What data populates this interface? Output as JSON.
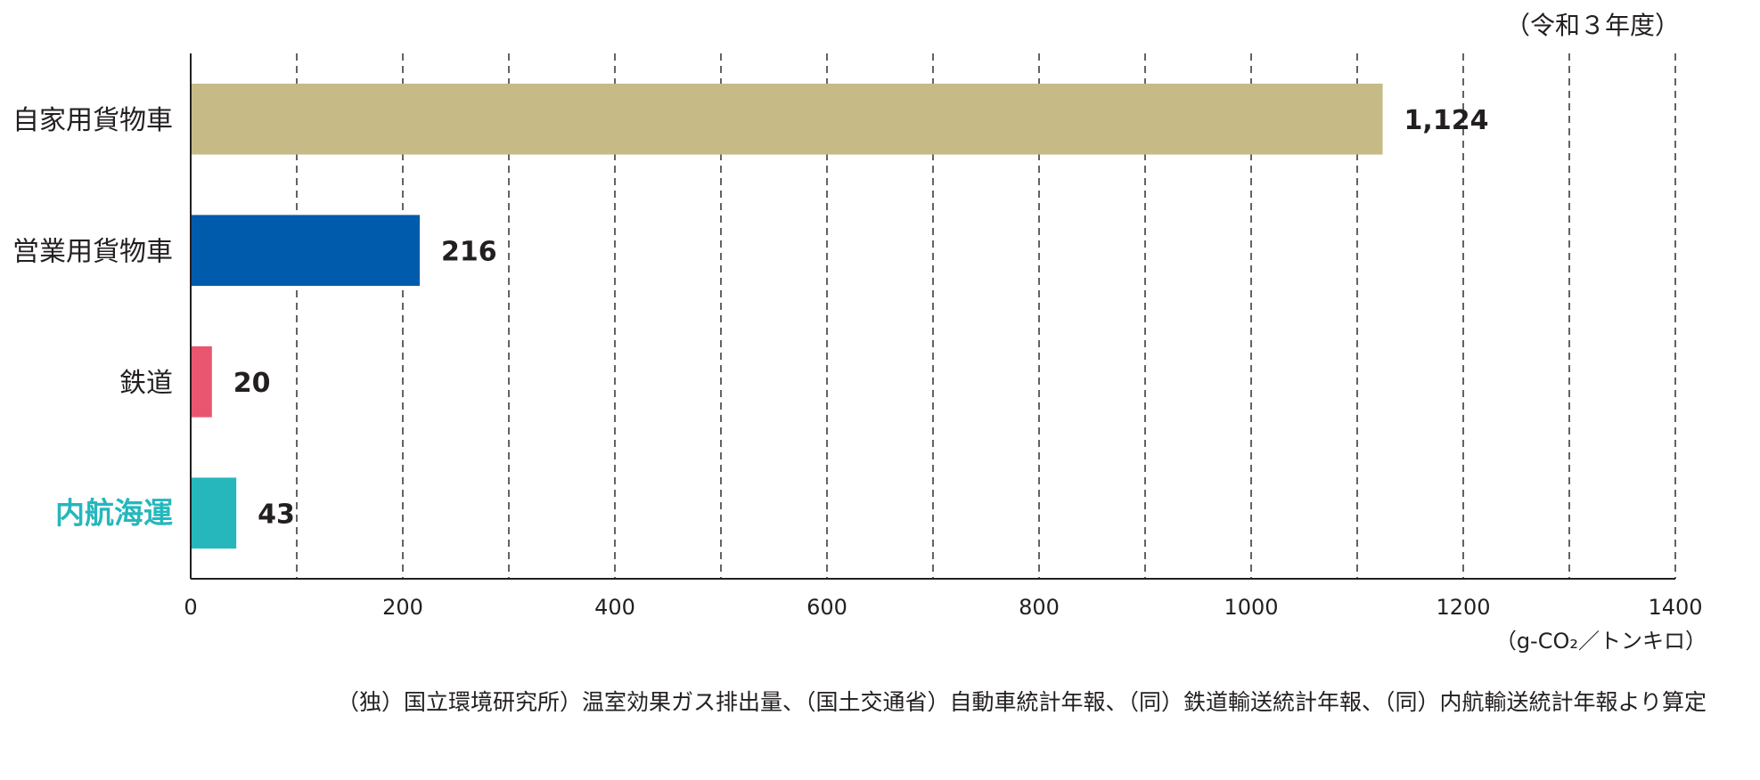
{
  "chart_data": {
    "type": "bar",
    "orientation": "horizontal",
    "categories": [
      "自家用貨物車",
      "営業用貨物車",
      "鉄道",
      "内航海運"
    ],
    "values": [
      1124,
      216,
      20,
      43
    ],
    "value_labels": [
      "1,124",
      "216",
      "20",
      "43"
    ],
    "colors": [
      "#c6bb87",
      "#005bac",
      "#e8566f",
      "#25b7bc"
    ],
    "highlight_category": "内航海運",
    "highlight_color": "#25b7bc",
    "xlim": [
      0,
      1400
    ],
    "x_ticks": [
      0,
      200,
      400,
      600,
      800,
      1000,
      1200,
      1400
    ],
    "x_tick_labels": [
      "0",
      "200",
      "400",
      "600",
      "800",
      "1000",
      "1200",
      "1400"
    ],
    "gridlines": [
      100,
      200,
      300,
      400,
      500,
      600,
      700,
      800,
      900,
      1000,
      1100,
      1200,
      1300,
      1400
    ],
    "grid": true,
    "grid_style": "dashed",
    "unit": "（g-CO₂／トンキロ）",
    "period_note": "（令和３年度）",
    "source": "（独）国立環境研究所）温室効果ガス排出量、（国土交通省）自動車統計年報、（同）鉄道輸送統計年報、（同）内航輸送統計年報より算定"
  }
}
